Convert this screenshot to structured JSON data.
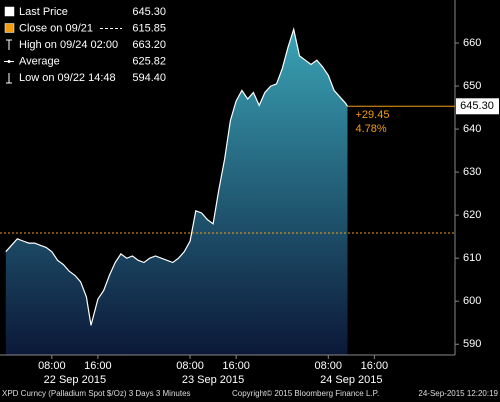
{
  "chart_data": {
    "type": "area",
    "line_color": "#ffffff",
    "fill_top": "#3aa3b5",
    "fill_bottom": "#0b1838",
    "x": [
      "2015-09-22T00:00",
      "2015-09-22T01:00",
      "2015-09-22T02:00",
      "2015-09-22T03:00",
      "2015-09-22T04:00",
      "2015-09-22T05:00",
      "2015-09-22T06:00",
      "2015-09-22T07:00",
      "2015-09-22T08:00",
      "2015-09-22T09:00",
      "2015-09-22T10:00",
      "2015-09-22T11:00",
      "2015-09-22T12:00",
      "2015-09-22T13:00",
      "2015-09-22T14:00",
      "2015-09-22T14:48",
      "2015-09-22T16:00",
      "2015-09-22T17:00",
      "2015-09-22T18:00",
      "2015-09-22T19:00",
      "2015-09-22T20:00",
      "2015-09-22T21:00",
      "2015-09-22T22:00",
      "2015-09-22T23:00",
      "2015-09-23T00:00",
      "2015-09-23T01:00",
      "2015-09-23T02:00",
      "2015-09-23T03:00",
      "2015-09-23T04:00",
      "2015-09-23T05:00",
      "2015-09-23T06:00",
      "2015-09-23T07:00",
      "2015-09-23T08:00",
      "2015-09-23T09:00",
      "2015-09-23T10:00",
      "2015-09-23T11:00",
      "2015-09-23T12:00",
      "2015-09-23T13:00",
      "2015-09-23T14:00",
      "2015-09-23T15:00",
      "2015-09-23T16:00",
      "2015-09-23T17:00",
      "2015-09-23T18:00",
      "2015-09-23T19:00",
      "2015-09-23T20:00",
      "2015-09-23T21:00",
      "2015-09-23T22:00",
      "2015-09-23T23:00",
      "2015-09-24T00:00",
      "2015-09-24T01:00",
      "2015-09-24T02:00",
      "2015-09-24T03:00",
      "2015-09-24T04:00",
      "2015-09-24T05:00",
      "2015-09-24T06:00",
      "2015-09-24T07:00",
      "2015-09-24T08:00",
      "2015-09-24T09:00",
      "2015-09-24T10:00",
      "2015-09-24T11:00",
      "2015-09-24T11:20"
    ],
    "series": [
      {
        "name": "Last Price",
        "values": [
          611.5,
          613,
          614.5,
          614,
          613.5,
          613.5,
          613,
          612.5,
          611.5,
          609.5,
          608.5,
          607,
          606,
          604.5,
          601,
          594.4,
          600.5,
          602.5,
          606,
          609,
          611,
          610,
          610.5,
          609.5,
          609,
          610,
          610.5,
          610,
          609.5,
          609,
          610,
          611.5,
          614,
          621,
          620.5,
          619,
          618,
          626,
          633,
          642,
          646.5,
          649,
          647,
          648.5,
          645.5,
          648.5,
          650,
          650.5,
          654,
          659,
          663.2,
          657,
          656,
          655,
          656,
          654.5,
          652.5,
          649,
          647.5,
          646,
          645.3
        ]
      }
    ],
    "xlim": [
      "2015-09-21T23:00",
      "2015-09-25T06:00"
    ],
    "ylim": [
      587.5,
      670
    ],
    "yticks": [
      590,
      600,
      610,
      620,
      630,
      640,
      650,
      660
    ],
    "xticks": [
      {
        "value": "2015-09-22T08:00",
        "label": "08:00"
      },
      {
        "value": "2015-09-22T16:00",
        "label": "16:00"
      },
      {
        "value": "2015-09-23T08:00",
        "label": "08:00"
      },
      {
        "value": "2015-09-23T16:00",
        "label": "16:00"
      },
      {
        "value": "2015-09-24T08:00",
        "label": "08:00"
      },
      {
        "value": "2015-09-24T16:00",
        "label": "16:00"
      }
    ],
    "xdates": [
      {
        "value": "2015-09-22T12:00",
        "label": "22 Sep 2015"
      },
      {
        "value": "2015-09-23T12:00",
        "label": "23 Sep 2015"
      },
      {
        "value": "2015-09-24T12:00",
        "label": "24 Sep 2015"
      }
    ],
    "legend": [
      {
        "name": "Last Price",
        "value": 645.3,
        "label": "645.30",
        "color": "#ffffff"
      },
      {
        "name": "Close on 09/21",
        "value": 615.85,
        "label": "615.85",
        "color": "#f39c12"
      },
      {
        "name": "High on 09/24 02:00",
        "value": 663.2,
        "label": "663.20",
        "color": "#ffffff"
      },
      {
        "name": "Average",
        "value": 625.82,
        "label": "625.82",
        "color": "#ffffff"
      },
      {
        "name": "Low on 09/22 14:48",
        "value": 594.4,
        "label": "594.40",
        "color": "#ffffff"
      }
    ],
    "last_tag": {
      "value": 645.3,
      "label": "645.30"
    },
    "change_labels": [
      "+29.45",
      "4.78%"
    ],
    "annotation_color": "#f39c12",
    "footer": [
      "XPD Curncy (Palladium Spot $/Oz) 3 Days 3 Minutes",
      "Copyright© 2015 Bloomberg Finance L.P.",
      "24-Sep-2015 12:20:19"
    ]
  }
}
